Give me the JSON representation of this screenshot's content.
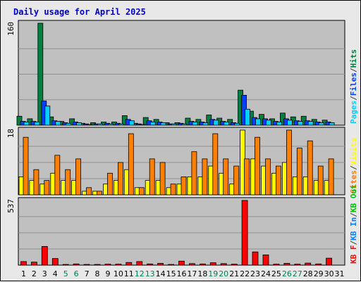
{
  "chart_data": {
    "type": "bar",
    "title": "Daily usage for April 2025",
    "categories": [
      1,
      2,
      3,
      4,
      5,
      6,
      7,
      8,
      9,
      10,
      11,
      12,
      13,
      14,
      15,
      16,
      17,
      18,
      19,
      20,
      21,
      22,
      23,
      24,
      25,
      26,
      27,
      28,
      29,
      30,
      31
    ],
    "weekend_days": [
      5,
      6,
      12,
      13,
      19,
      20,
      26,
      27
    ],
    "panels": [
      {
        "id": "hits",
        "axis_max_label": "160",
        "ylim": [
          0,
          160
        ],
        "series": [
          {
            "name": "Hits",
            "color": "#008040",
            "values": [
              14,
              10,
              160,
              13,
              6,
              10,
              3,
              4,
              5,
              5,
              15,
              3,
              12,
              9,
              4,
              4,
              11,
              9,
              16,
              11,
              9,
              55,
              22,
              17,
              10,
              19,
              13,
              14,
              9,
              8,
              0
            ]
          },
          {
            "name": "Files",
            "color": "#0040ff",
            "values": [
              6,
              6,
              38,
              7,
              4,
              5,
              2,
              2,
              3,
              3,
              9,
              2,
              7,
              5,
              2,
              3,
              6,
              5,
              9,
              6,
              4,
              47,
              12,
              10,
              6,
              10,
              7,
              7,
              5,
              5,
              0
            ]
          },
          {
            "name": "Pages",
            "color": "#00d0ff",
            "values": [
              5,
              5,
              30,
              6,
              3,
              4,
              1,
              2,
              2,
              2,
              7,
              1,
              5,
              4,
              2,
              2,
              5,
              4,
              8,
              5,
              3,
              25,
              10,
              8,
              5,
              8,
              6,
              6,
              4,
              4,
              0
            ]
          }
        ],
        "legend": [
          {
            "label": "Pages",
            "color": "#00d0ff"
          },
          {
            "label": "/",
            "color": "#404040"
          },
          {
            "label": "Files",
            "color": "#0040ff"
          },
          {
            "label": "/",
            "color": "#404040"
          },
          {
            "label": "Hits",
            "color": "#008040"
          }
        ]
      },
      {
        "id": "visits",
        "axis_max_label": "18",
        "ylim": [
          0,
          18
        ],
        "series": [
          {
            "name": "Visits",
            "color": "#ffff00",
            "values": [
              5,
              4,
              3,
              6,
              4,
              4,
              1,
              1,
              3,
              4,
              7,
              2,
              4,
              4,
              2,
              3,
              5,
              5,
              8,
              6,
              3,
              18,
              10,
              8,
              6,
              9,
              5,
              5,
              4,
              4,
              0
            ]
          },
          {
            "name": "Sites",
            "color": "#ff8000",
            "values": [
              16,
              7,
              4,
              11,
              7,
              10,
              2,
              1,
              6,
              9,
              17,
              2,
              10,
              9,
              3,
              5,
              12,
              10,
              17,
              10,
              8,
              10,
              16,
              10,
              8,
              18,
              13,
              15,
              8,
              10,
              0
            ]
          }
        ],
        "legend": [
          {
            "label": "Sites",
            "color": "#ff8000"
          },
          {
            "label": "/",
            "color": "#404040"
          },
          {
            "label": "Visits",
            "color": "#ffff00"
          }
        ]
      },
      {
        "id": "kbytes",
        "axis_max_label": "537",
        "ylim": [
          0,
          537
        ],
        "series": [
          {
            "name": "KB F",
            "color": "#ff0000",
            "values": [
              30,
              25,
              155,
              55,
              5,
              10,
              3,
              2,
              8,
              8,
              22,
              30,
              10,
              15,
              3,
              33,
              13,
              10,
              20,
              13,
              8,
              537,
              110,
              85,
              8,
              15,
              8,
              17,
              10,
              58,
              0
            ]
          }
        ],
        "legend": [
          {
            "label": "KB F",
            "color": "#ff0000"
          },
          {
            "label": "/",
            "color": "#404040"
          },
          {
            "label": "KB In",
            "color": "#0080ff"
          },
          {
            "label": "/",
            "color": "#404040"
          },
          {
            "label": "KB Out",
            "color": "#00c000"
          }
        ]
      }
    ]
  }
}
